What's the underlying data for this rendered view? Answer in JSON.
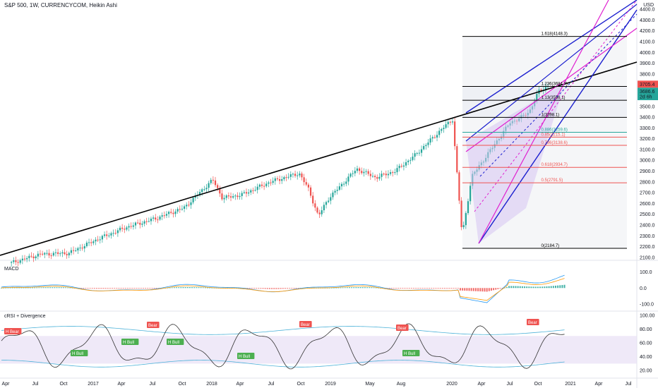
{
  "header": {
    "title": "S&P 500, 1W, CURRENCYCOM, Heikin Ashi",
    "currency": "USD"
  },
  "panes": {
    "macd_label": "MACD",
    "crsi_label": "cRSI + Divergence"
  },
  "price_badges": [
    {
      "value": "3705.4",
      "color": "#f05350"
    },
    {
      "value": "3686.6",
      "color": "#26a69a"
    },
    {
      "value": "2d 6h",
      "color": "#26a69a"
    }
  ],
  "chart_data": [
    {
      "type": "candlestick",
      "title": "S&P 500, 1W, CURRENCYCOM, Heikin Ashi",
      "y_ticks": [
        "4400.0",
        "4300.0",
        "4200.0",
        "4100.0",
        "4000.0",
        "3900.0",
        "3800.0",
        "3600.0",
        "3500.0",
        "3400.0",
        "3300.0",
        "3200.0",
        "3100.0",
        "3000.0",
        "2900.0",
        "2800.0",
        "2700.0",
        "2600.0",
        "2500.0",
        "2400.0",
        "2300.0",
        "2200.0",
        "2100.0"
      ],
      "x_ticks": [
        "Apr",
        "Jul",
        "Oct",
        "2017",
        "Apr",
        "Jul",
        "Oct",
        "2018",
        "Apr",
        "Jul",
        "Oct",
        "2019",
        "May",
        "Aug",
        "2020",
        "Apr",
        "Jul",
        "Oct",
        "2021",
        "Apr",
        "Jul"
      ],
      "ylim": [
        2080,
        4420
      ],
      "close_points": [
        [
          "2016-04",
          2050
        ],
        [
          "2016-07",
          2130
        ],
        [
          "2016-10",
          2140
        ],
        [
          "2017-01",
          2270
        ],
        [
          "2017-04",
          2380
        ],
        [
          "2017-07",
          2460
        ],
        [
          "2017-10",
          2560
        ],
        [
          "2018-01",
          2820
        ],
        [
          "2018-02",
          2650
        ],
        [
          "2018-04",
          2680
        ],
        [
          "2018-07",
          2800
        ],
        [
          "2018-10",
          2880
        ],
        [
          "2018-11",
          2730
        ],
        [
          "2018-12",
          2480
        ],
        [
          "2019-01",
          2640
        ],
        [
          "2019-04",
          2920
        ],
        [
          "2019-06",
          2840
        ],
        [
          "2019-08",
          2900
        ],
        [
          "2019-10",
          3040
        ],
        [
          "2020-01",
          3300
        ],
        [
          "2020-02",
          3380
        ],
        [
          "2020-03",
          2300
        ],
        [
          "2020-04",
          2850
        ],
        [
          "2020-06",
          3100
        ],
        [
          "2020-08",
          3350
        ],
        [
          "2020-09",
          3390
        ],
        [
          "2020-10",
          3450
        ],
        [
          "2020-11",
          3640
        ],
        [
          "2020-12",
          3690
        ]
      ],
      "fib_levels": [
        {
          "label": "1.618(4148.3)",
          "value": 4148.3
        },
        {
          "label": "1.236(3684.7)",
          "value": 3684.7
        },
        {
          "label": "1.13(3556.1)",
          "value": 3556.1
        },
        {
          "label": "1(3398.1)",
          "value": 3398.1
        },
        {
          "label": "0.886(3259.6)",
          "value": 3259.6
        },
        {
          "label": "0.85(3215.1)",
          "value": 3215.1
        },
        {
          "label": "0.786(3138.6)",
          "value": 3138.6
        },
        {
          "label": "0.618(2934.7)",
          "value": 2934.7
        },
        {
          "label": "0.5(2791.5)",
          "value": 2791.5
        },
        {
          "label": "0(2184.7)",
          "value": 2184.7
        }
      ]
    },
    {
      "type": "bar",
      "title": "MACD",
      "y_ticks": [
        "100.0",
        "0.0",
        "-100.0"
      ],
      "ylim": [
        -140,
        160
      ]
    },
    {
      "type": "line",
      "title": "cRSI + Divergence",
      "y_ticks": [
        "100.00",
        "80.00",
        "60.00",
        "40.00",
        "20.00"
      ],
      "ylim": [
        10,
        105
      ],
      "signals": [
        "H Bear",
        "Bear",
        "Bear",
        "Bear",
        "Bear",
        "H Bull",
        "H Bull",
        "H Bull",
        "H Bull",
        "H Bull"
      ]
    }
  ]
}
